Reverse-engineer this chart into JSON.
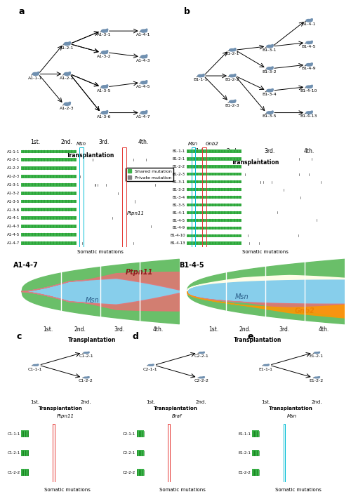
{
  "panel_a_label": "a",
  "panel_b_label": "b",
  "panel_c_label": "c",
  "panel_d_label": "d",
  "panel_e_label": "e",
  "mouse_tree_a": {
    "gen1": [
      "A1-1-1"
    ],
    "gen2": [
      "A1-2-1",
      "A1-2-2",
      "A1-2-3"
    ],
    "gen3": [
      "A1-3-1",
      "A1-3-2",
      "A1-3-5",
      "A1-3-6"
    ],
    "gen4": [
      "A1-4-1",
      "A1-4-3",
      "A1-4-5",
      "A1-4-7"
    ]
  },
  "mouse_tree_b": {
    "gen1": [
      "B1-1-1"
    ],
    "gen2": [
      "B1-2-1",
      "B1-2-2",
      "B1-2-3"
    ],
    "gen3": [
      "B1-3-1",
      "B1-3-2",
      "B1-3-4",
      "B1-3-5"
    ],
    "gen4": [
      "B1-4-1",
      "B1-4-5",
      "B1-4-9",
      "B1-4-10",
      "B1-4-13"
    ]
  },
  "barplot_a_rows": [
    "A1-1-1",
    "A1-2-1",
    "A1-2-2",
    "A1-2-3",
    "A1-3-1",
    "A1-3-2",
    "A1-3-5",
    "A1-3-6",
    "A1-4-1",
    "A1-4-3",
    "A1-4-5",
    "A1-4-7"
  ],
  "barplot_b_rows": [
    "B1-1-1",
    "B1-2-1",
    "B1-2-2",
    "B1-2-3",
    "B1-3-1",
    "B1-3-2",
    "B1-3-4",
    "B1-3-5",
    "B1-4-1",
    "B1-4-5",
    "B1-4-9",
    "B1-4-10",
    "B1-4-13"
  ],
  "shared_color": "#3cb44b",
  "private_color": "#808080",
  "highlight_cyan": "#00bcd4",
  "highlight_red": "#e53935",
  "sankey_a_title": "A1-4-7",
  "sankey_b_title": "B1-4-5",
  "sankey_a_colors": [
    "#6abf69",
    "#87ceeb",
    "#e57373",
    "#ff9800"
  ],
  "sankey_b_colors": [
    "#6abf69",
    "#87ceeb",
    "#fffde7",
    "#e57373",
    "#ff9800"
  ],
  "msn_color": "#87ceeb",
  "ptpn11_color": "#e57373",
  "gnb2_color": "#e57373",
  "green_outer": "#6abf69",
  "orange_color": "#ff9800",
  "yellow_color": "#fffde7",
  "transplant_labels": [
    "1st.",
    "2nd.",
    "3rd.",
    "4th."
  ],
  "transplant_label_bold": "Transplantation",
  "barplot_c_rows": [
    "C1-1-1",
    "C1-2-1",
    "C1-2-2"
  ],
  "barplot_d_rows": [
    "C2-1-1",
    "C2-2-1",
    "C2-2-2"
  ],
  "barplot_e_rows": [
    "E1-1-1",
    "E1-2-1",
    "E1-2-2"
  ],
  "gene_ptpn11": "Ptpn11",
  "gene_msn": "Msn",
  "gene_gnb2": "Gnb2",
  "gene_braf": "Braf",
  "bg_color": "#ffffff",
  "axis_color": "#000000",
  "label_fontsize": 7,
  "title_fontsize": 8,
  "small_fontsize": 6
}
